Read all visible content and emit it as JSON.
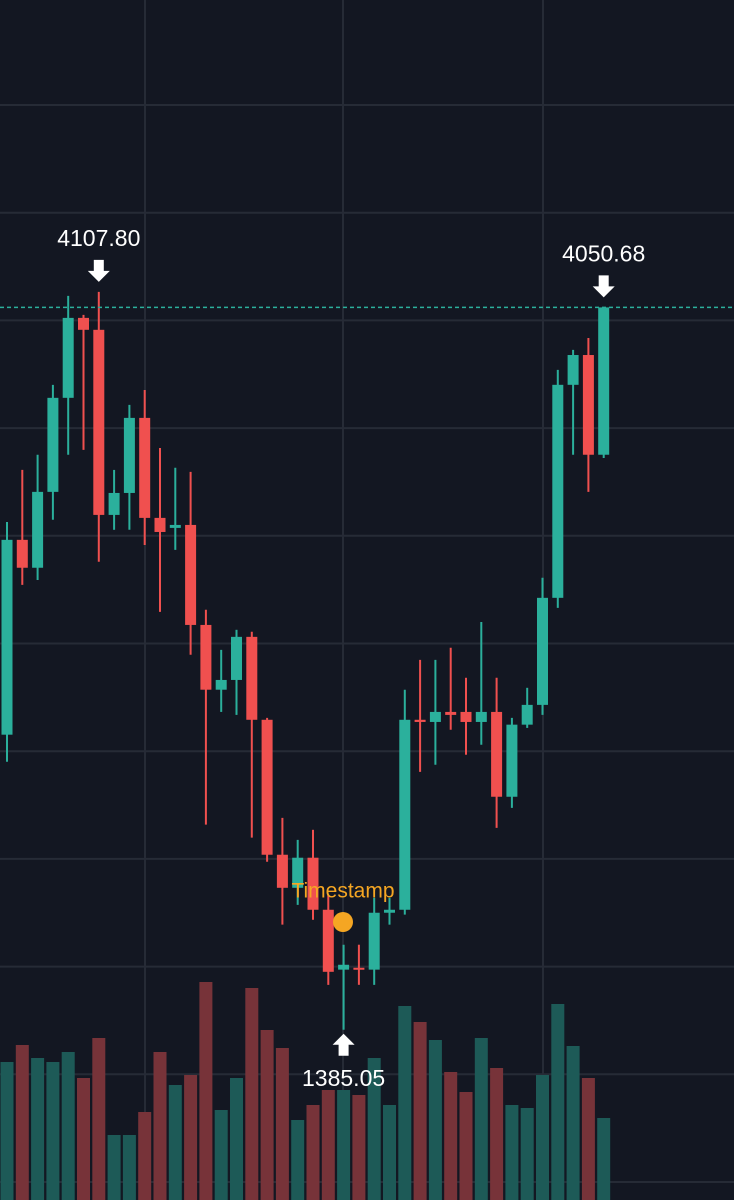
{
  "chart_data": {
    "type": "candlestick",
    "open": [
      2474,
      3193,
      3090,
      3370,
      3717,
      4012,
      3968,
      3285,
      3366,
      3643,
      3274,
      3237,
      3248,
      2879,
      2640,
      2676,
      2835,
      2529,
      2031,
      1909,
      2020,
      1828,
      1607,
      1614,
      1607,
      1817,
      1828,
      2529,
      2521,
      2558,
      2558,
      2521,
      2558,
      2245,
      2511,
      2584,
      2979,
      3765,
      3875,
      3507
    ],
    "high": [
      3259,
      3451,
      3507,
      3765,
      4093,
      4023,
      4107.8,
      3451,
      3691,
      3746,
      3532,
      3459,
      3444,
      2935,
      2787,
      2861,
      2854,
      2536,
      2167,
      2086,
      2123,
      1883,
      1699,
      1699,
      1872,
      1872,
      2640,
      2750,
      2750,
      2795,
      2684,
      2890,
      2684,
      2536,
      2647,
      3053,
      3820,
      3894,
      3938,
      4050.68
    ],
    "low": [
      2374,
      3027,
      3045,
      3267,
      3507,
      3525,
      3112,
      3230,
      3230,
      3174,
      2927,
      3156,
      2769,
      2142,
      2558,
      2547,
      2094,
      2005,
      1773,
      1846,
      1791,
      1551,
      1385.05,
      1551,
      1551,
      1773,
      1810,
      2337,
      2363,
      2492,
      2400,
      2437,
      2130,
      2204,
      2499,
      2547,
      2942,
      3507,
      3370,
      3495
    ],
    "close": [
      3193,
      3090,
      3370,
      3717,
      4012,
      3968,
      3285,
      3366,
      3643,
      3274,
      3222,
      3248,
      2879,
      2640,
      2676,
      2835,
      2529,
      2031,
      1909,
      2020,
      1828,
      1599,
      1625,
      1607,
      1817,
      1828,
      2529,
      2521,
      2558,
      2547,
      2521,
      2558,
      2245,
      2511,
      2584,
      2979,
      3765,
      3875,
      3507,
      4050.68
    ],
    "volume": [
      138,
      155,
      142,
      138,
      148,
      122,
      162,
      65,
      65,
      88,
      148,
      115,
      125,
      218,
      90,
      122,
      212,
      170,
      152,
      80,
      95,
      110,
      110,
      105,
      142,
      95,
      194,
      178,
      160,
      128,
      108,
      162,
      132,
      95,
      92,
      125,
      196,
      154,
      122,
      82
    ],
    "ylim": [
      757,
      5185
    ],
    "y2lim": [
      0,
      1200
    ],
    "grid": true,
    "up_color": "#2bb09c",
    "down_color": "#f0504f",
    "volume_up_color": "#1d5a57",
    "volume_down_color": "#773339",
    "high_label": {
      "value": 4107.8,
      "label": "4107.80"
    },
    "low_label": {
      "value": 1385.05,
      "label": "1385.05"
    },
    "last_label": {
      "value": 4050.68,
      "label": "4050.68"
    },
    "marker_label": "Timestamp"
  }
}
